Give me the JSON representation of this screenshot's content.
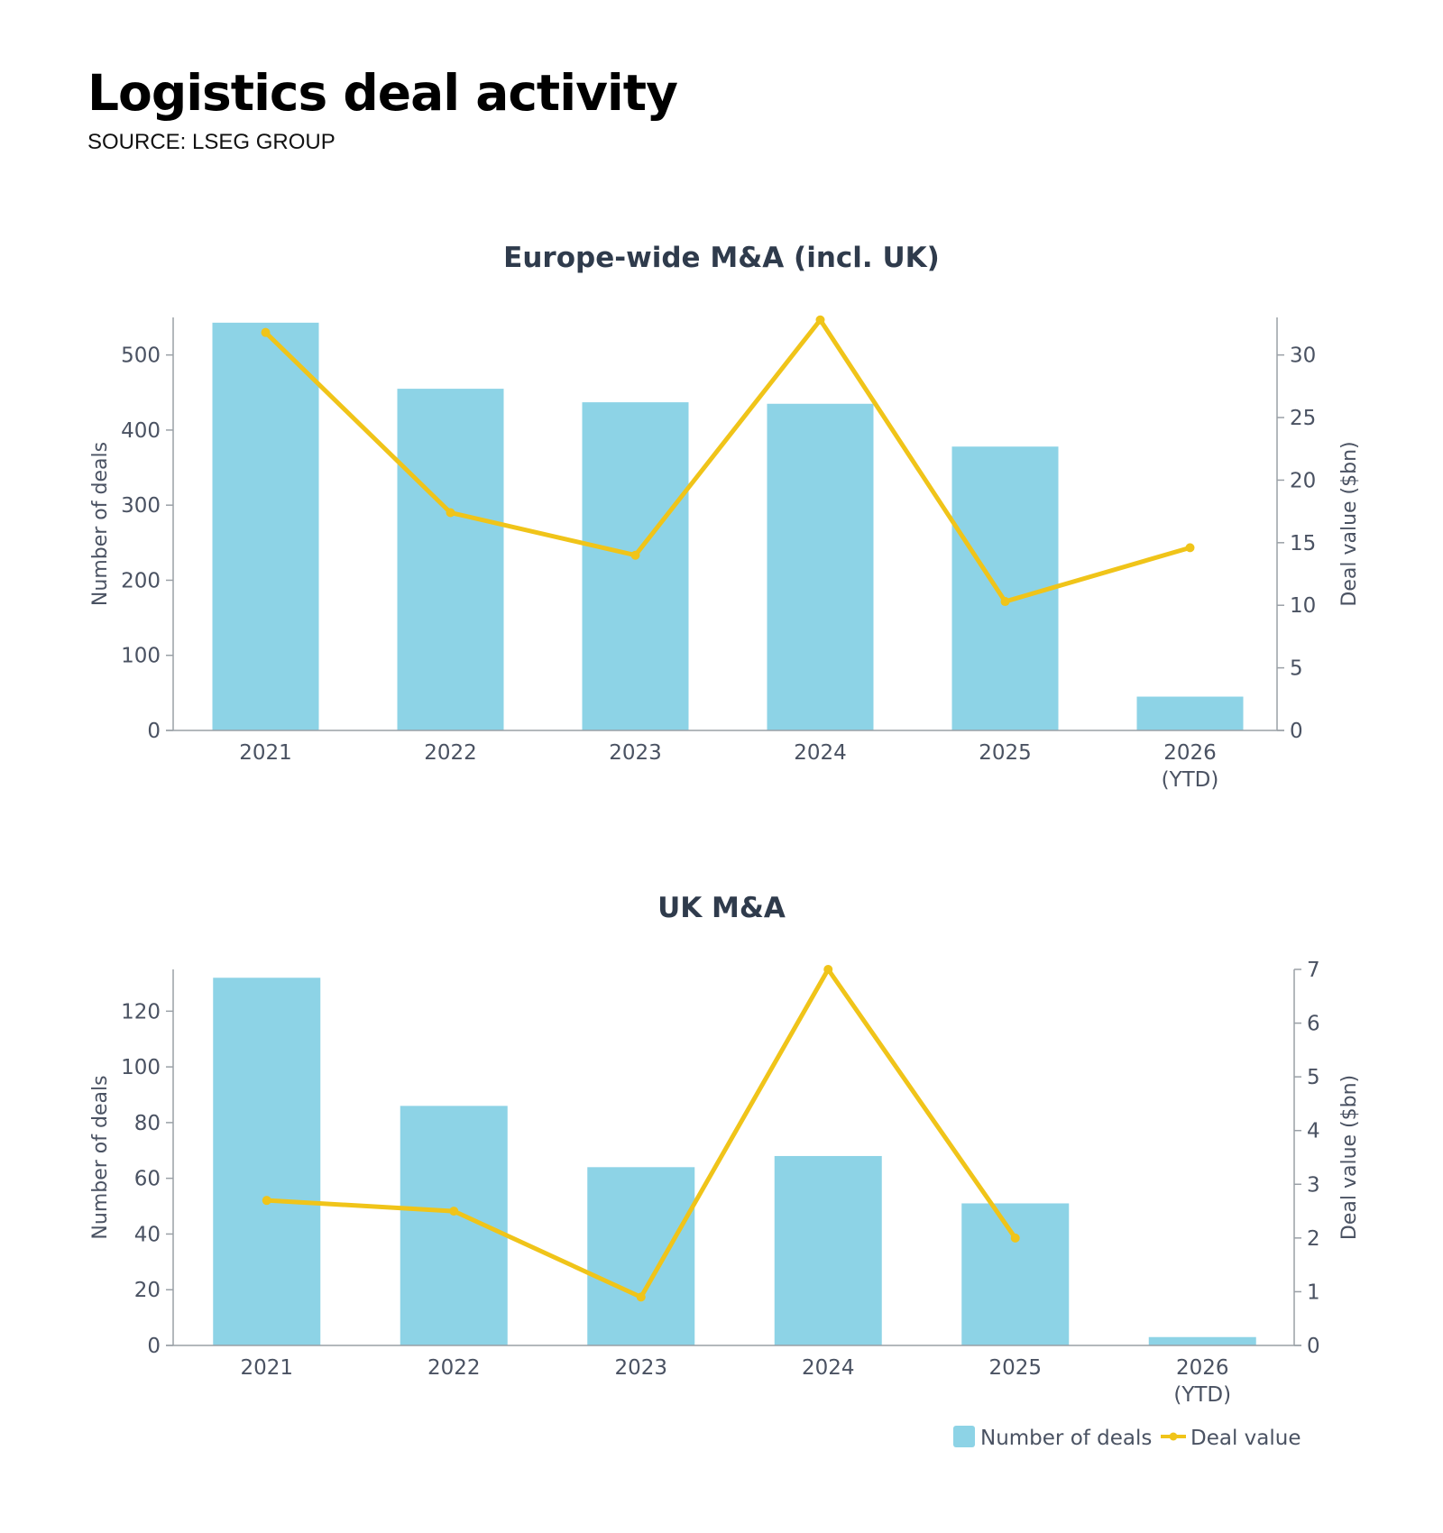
{
  "page": {
    "title": "Logistics deal activity",
    "source": "SOURCE: LSEG GROUP"
  },
  "colors": {
    "bars": "#8dd3e6",
    "line": "#f0c419",
    "axis": "#9aa0a6",
    "text": "#4a5262",
    "title": "#2f3b4c"
  },
  "legend": {
    "position": "bottom-right",
    "bars_label": "Number of deals",
    "line_label": "Deal value"
  },
  "chart_data": [
    {
      "type": "bar",
      "title": "Europe-wide M&A (incl. UK)",
      "categories": [
        "2021",
        "2022",
        "2023",
        "2024",
        "2025",
        "2026\n(YTD)"
      ],
      "ylabel": "Number of deals",
      "y2label": "Deal value ($bn)",
      "ylim": [
        0,
        550
      ],
      "yticks": [
        0,
        100,
        200,
        300,
        400,
        500
      ],
      "y2lim": [
        0,
        33
      ],
      "y2ticks": [
        0,
        5,
        10,
        15,
        20,
        25,
        30
      ],
      "series": [
        {
          "name": "Number of deals",
          "type": "bar",
          "axis": "left",
          "values": [
            543,
            455,
            437,
            435,
            378,
            45
          ]
        },
        {
          "name": "Deal value",
          "type": "line",
          "axis": "right",
          "values": [
            31.8,
            17.4,
            14.0,
            32.8,
            10.3,
            14.6
          ]
        }
      ]
    },
    {
      "type": "bar",
      "title": "UK M&A",
      "categories": [
        "2021",
        "2022",
        "2023",
        "2024",
        "2025",
        "2026\n(YTD)"
      ],
      "ylabel": "Number of deals",
      "y2label": "Deal value ($bn)",
      "ylim": [
        0,
        135
      ],
      "yticks": [
        0,
        20,
        40,
        60,
        80,
        100,
        120
      ],
      "y2lim": [
        0,
        7
      ],
      "y2ticks": [
        0,
        1,
        2,
        3,
        4,
        5,
        6,
        7
      ],
      "series": [
        {
          "name": "Number of deals",
          "type": "bar",
          "axis": "left",
          "values": [
            132,
            86,
            64,
            68,
            51,
            3
          ]
        },
        {
          "name": "Deal value",
          "type": "line",
          "axis": "right",
          "values": [
            2.7,
            2.5,
            0.9,
            7.0,
            2.0,
            null
          ]
        }
      ]
    }
  ]
}
